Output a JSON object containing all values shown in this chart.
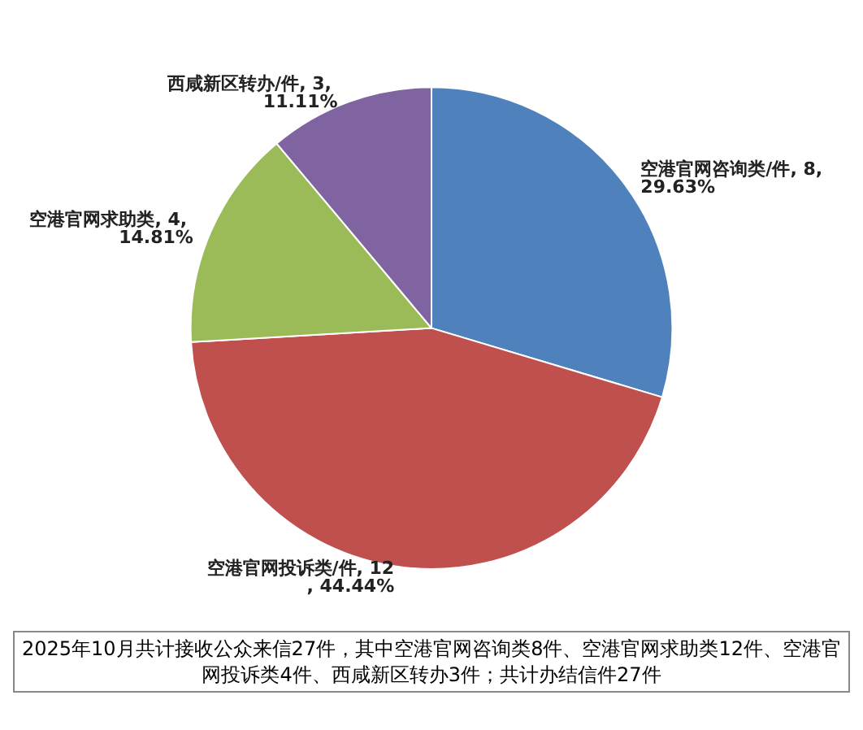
{
  "chart_data": {
    "type": "pie",
    "categories": [
      "空港官网咨询类/件",
      "空港官网投诉类/件",
      "空港官网求助类",
      "西咸新区转办/件"
    ],
    "values": [
      8,
      12,
      4,
      3
    ],
    "value_labels": [
      "8, 29.63%",
      "12, 44.44%",
      "4, 14.81%",
      "3, 11.11%"
    ],
    "colors": [
      "#4f81bd",
      "#c0504d",
      "#9bbb59",
      "#8064a2"
    ],
    "legend": false,
    "annotations": [
      "2025年10月共计接收公众来信27件，其中空港官网咨询类8件、空港官网求助类12件、空港官网投诉类4件、西咸新区转办3件；共计办结信件27件"
    ]
  }
}
